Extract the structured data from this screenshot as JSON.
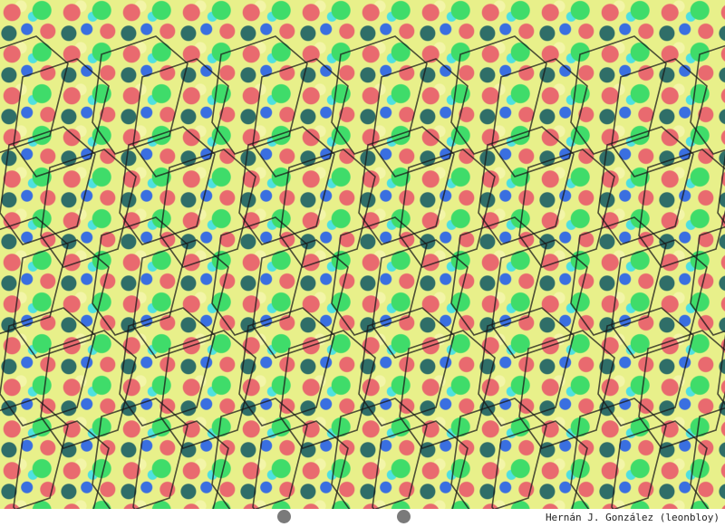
{
  "image": {
    "type": "autostereogram",
    "subject": "wireframe cubes",
    "colors": [
      "#e96a6f",
      "#3fdc6a",
      "#3a6fe0",
      "#2f6e68",
      "#e8f08a",
      "#4fe0e0"
    ]
  },
  "guides": {
    "count": 2,
    "color": "#7a7a7a"
  },
  "credit": "Hernán J. González (leonbloy)"
}
